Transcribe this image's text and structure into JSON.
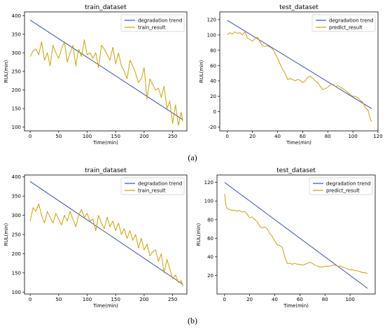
{
  "figure": {
    "label_a": "(a)",
    "label_b": "(b)"
  },
  "colors": {
    "trend": "#3b4fb3",
    "result": "#c9a400",
    "axes": "#000000"
  },
  "chart_data": [
    {
      "type": "line",
      "title": "train_dataset",
      "xlabel": "Time(min)",
      "ylabel": "RUL(min)",
      "xlim": [
        -10,
        275
      ],
      "ylim": [
        90,
        410
      ],
      "xticks": [
        0,
        50,
        100,
        150,
        200,
        250
      ],
      "yticks": [
        100,
        150,
        200,
        250,
        300,
        350,
        400
      ],
      "legend": "top-right",
      "series": [
        {
          "name": "degradation trend",
          "color": "#3b4fb3",
          "x": [
            0,
            268
          ],
          "y": [
            388,
            120
          ]
        },
        {
          "name": "train_result",
          "color": "#c9a400",
          "x": [
            0,
            5,
            10,
            15,
            20,
            25,
            30,
            35,
            40,
            45,
            50,
            55,
            60,
            65,
            70,
            75,
            80,
            85,
            90,
            95,
            100,
            105,
            110,
            115,
            120,
            125,
            130,
            135,
            140,
            145,
            150,
            155,
            160,
            165,
            170,
            175,
            180,
            185,
            190,
            195,
            200,
            205,
            210,
            215,
            220,
            225,
            230,
            235,
            240,
            245,
            250,
            255,
            260,
            265,
            268
          ],
          "y": [
            290,
            305,
            310,
            295,
            330,
            280,
            300,
            265,
            320,
            300,
            285,
            310,
            330,
            275,
            300,
            320,
            265,
            310,
            290,
            335,
            295,
            300,
            285,
            300,
            260,
            320,
            310,
            295,
            280,
            315,
            270,
            300,
            265,
            250,
            230,
            280,
            265,
            245,
            220,
            230,
            260,
            175,
            230,
            215,
            200,
            205,
            180,
            210,
            150,
            170,
            110,
            160,
            105,
            140,
            115
          ]
        }
      ]
    },
    {
      "type": "line",
      "title": "test_dataset",
      "xlabel": "Time(min)",
      "ylabel": "RUL(min)",
      "xlim": [
        -6,
        120
      ],
      "ylim": [
        -25,
        130
      ],
      "xticks": [
        0,
        20,
        40,
        60,
        80,
        100,
        120
      ],
      "yticks": [
        -20,
        0,
        20,
        40,
        60,
        80,
        100,
        120
      ],
      "legend": "top-right",
      "series": [
        {
          "name": "degradation trend",
          "color": "#3b4fb3",
          "x": [
            0,
            115
          ],
          "y": [
            119,
            4
          ]
        },
        {
          "name": "predict_result",
          "color": "#c9a400",
          "x": [
            0,
            2,
            4,
            6,
            8,
            10,
            12,
            14,
            16,
            18,
            20,
            22,
            24,
            26,
            28,
            30,
            32,
            34,
            36,
            38,
            40,
            42,
            44,
            46,
            48,
            50,
            52,
            54,
            56,
            58,
            60,
            62,
            64,
            66,
            68,
            70,
            72,
            74,
            76,
            78,
            80,
            82,
            84,
            86,
            88,
            90,
            92,
            94,
            96,
            98,
            100,
            102,
            104,
            106,
            108,
            110,
            112,
            114,
            115
          ],
          "y": [
            100,
            103,
            101,
            104,
            102,
            103,
            100,
            104,
            96,
            94,
            92,
            95,
            97,
            91,
            86,
            85,
            86,
            84,
            82,
            76,
            70,
            62,
            55,
            50,
            42,
            43,
            42,
            40,
            42,
            41,
            38,
            40,
            45,
            46,
            44,
            40,
            38,
            33,
            29,
            30,
            32,
            35,
            36,
            33,
            34,
            32,
            30,
            28,
            25,
            22,
            20,
            20,
            18,
            15,
            12,
            5,
            2,
            -10,
            -13
          ]
        }
      ]
    },
    {
      "type": "line",
      "title": "train_dataset",
      "xlabel": "Time(min)",
      "ylabel": "RUL(min)",
      "xlim": [
        -10,
        275
      ],
      "ylim": [
        95,
        405
      ],
      "xticks": [
        0,
        50,
        100,
        150,
        200,
        250
      ],
      "yticks": [
        100,
        150,
        200,
        250,
        300,
        350,
        400
      ],
      "legend": "top-right",
      "series": [
        {
          "name": "degradation trend",
          "color": "#3b4fb3",
          "x": [
            0,
            268
          ],
          "y": [
            388,
            120
          ]
        },
        {
          "name": "train_result",
          "color": "#c9a400",
          "x": [
            0,
            5,
            10,
            15,
            20,
            25,
            30,
            35,
            40,
            45,
            50,
            55,
            60,
            65,
            70,
            75,
            80,
            85,
            90,
            95,
            100,
            105,
            110,
            115,
            120,
            125,
            130,
            135,
            140,
            145,
            150,
            155,
            160,
            165,
            170,
            175,
            180,
            185,
            190,
            195,
            200,
            205,
            210,
            215,
            220,
            225,
            230,
            235,
            240,
            245,
            250,
            255,
            260,
            265,
            268
          ],
          "y": [
            285,
            320,
            310,
            330,
            300,
            280,
            310,
            295,
            280,
            305,
            290,
            275,
            300,
            285,
            310,
            290,
            270,
            300,
            315,
            295,
            305,
            285,
            290,
            260,
            300,
            280,
            265,
            295,
            270,
            285,
            260,
            280,
            250,
            265,
            240,
            260,
            235,
            250,
            215,
            240,
            210,
            225,
            195,
            205,
            210,
            180,
            200,
            150,
            185,
            160,
            135,
            145,
            125,
            130,
            115
          ]
        }
      ]
    },
    {
      "type": "line",
      "title": "test_dataset",
      "xlabel": "Time(min)",
      "ylabel": "RUL(min)",
      "xlim": [
        -6,
        120
      ],
      "ylim": [
        0,
        128
      ],
      "xticks": [
        0,
        20,
        40,
        60,
        80,
        100
      ],
      "yticks": [
        20,
        40,
        60,
        80,
        100,
        120
      ],
      "legend": "top-right",
      "series": [
        {
          "name": "degradation trend",
          "color": "#3b4fb3",
          "x": [
            0,
            114
          ],
          "y": [
            120,
            6
          ]
        },
        {
          "name": "predict_result",
          "color": "#c9a400",
          "x": [
            0,
            1,
            2,
            4,
            6,
            8,
            10,
            12,
            14,
            16,
            18,
            20,
            22,
            24,
            26,
            28,
            30,
            32,
            34,
            36,
            38,
            40,
            42,
            44,
            46,
            48,
            50,
            52,
            54,
            56,
            58,
            60,
            62,
            64,
            66,
            68,
            70,
            72,
            74,
            76,
            78,
            80,
            82,
            84,
            86,
            88,
            90,
            92,
            94,
            96,
            98,
            100,
            102,
            104,
            106,
            108,
            110,
            112,
            114
          ],
          "y": [
            108,
            96,
            92,
            91,
            90,
            90,
            89,
            90,
            88,
            89,
            86,
            82,
            83,
            80,
            78,
            73,
            71,
            72,
            70,
            65,
            62,
            57,
            53,
            52,
            50,
            40,
            33,
            33,
            32,
            33,
            32,
            32,
            31,
            32,
            33,
            34,
            33,
            31,
            30,
            29,
            29,
            30,
            30,
            30,
            31,
            31,
            30,
            30,
            29,
            28,
            27,
            26,
            26,
            25,
            25,
            24,
            23,
            23,
            22
          ]
        }
      ]
    }
  ]
}
